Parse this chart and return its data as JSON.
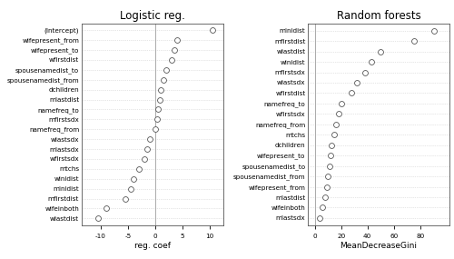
{
  "logistic": {
    "labels": [
      "(Intercept)",
      "wifepresent_from",
      "wifepresent_to",
      "wfirstdist",
      "spousenamedist_to",
      "spousenamedist_from",
      "dchildren",
      "mlastdist",
      "namefreq_to",
      "mfirstsdx",
      "namefreq_from",
      "wlastsdx",
      "mlastsdx",
      "wfirstsdx",
      "mtchs",
      "winidist",
      "minidist",
      "mfirstdist",
      "wifeinboth",
      "wlastdist"
    ],
    "values": [
      10.5,
      4.0,
      3.5,
      3.0,
      2.0,
      1.5,
      1.0,
      0.8,
      0.5,
      0.3,
      0.0,
      -1.0,
      -1.5,
      -2.0,
      -3.0,
      -4.0,
      -4.5,
      -5.5,
      -9.0,
      -10.5
    ],
    "title": "Logistic reg.",
    "xlabel": "reg. coef",
    "xlim": [
      -13.5,
      12.5
    ],
    "xticks": [
      -10,
      -5,
      0,
      5,
      10
    ]
  },
  "rf": {
    "labels": [
      "minidist",
      "mfirstdist",
      "wlastdist",
      "winidist",
      "mfirstsdx",
      "wlastsdx",
      "wfirstdist",
      "namefreq_to",
      "wfirstsdx",
      "namefreq_from",
      "mtchs",
      "dchildren",
      "wifepresent_to",
      "spousenamedist_to",
      "spousenamedist_from",
      "wifepresent_from",
      "mlastdist",
      "wifeinboth",
      "mlastsdx"
    ],
    "values": [
      90,
      75,
      50,
      43,
      38,
      32,
      28,
      20,
      18,
      16,
      15,
      13,
      12,
      11,
      10,
      9,
      8,
      6,
      4
    ],
    "title": "Random forests",
    "xlabel": "MeanDecreaseGini",
    "xlim": [
      -5,
      102
    ],
    "xticks": [
      0,
      20,
      40,
      60,
      80
    ]
  },
  "dot_color": "#ffffff",
  "dot_edgecolor": "#555555",
  "dot_size": 18,
  "bg_color": "#ffffff",
  "grid_color": "#cccccc",
  "vline_color": "#aaaaaa",
  "label_fontsize": 5.2,
  "title_fontsize": 8.5,
  "xlabel_fontsize": 6.5
}
